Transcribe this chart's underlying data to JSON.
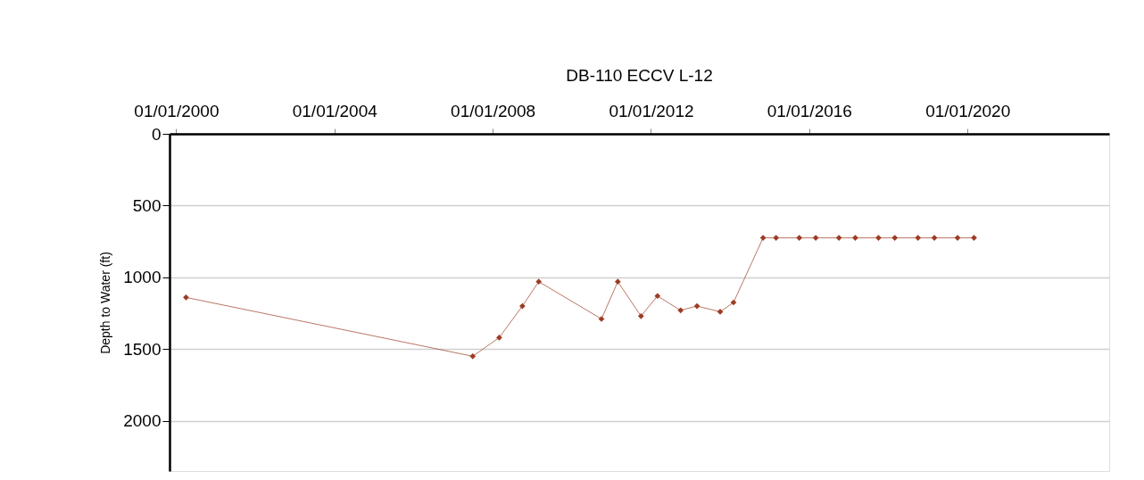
{
  "chart_data": {
    "type": "line",
    "title": "DB-110  ECCV L-12",
    "ylabel": "Depth to Water (ft)",
    "x": [
      "2000-04",
      "2007-07",
      "2008-03",
      "2008-10",
      "2009-03",
      "2010-10",
      "2011-03",
      "2011-10",
      "2012-03",
      "2012-10",
      "2013-03",
      "2013-10",
      "2014-02",
      "2014-11",
      "2015-03",
      "2015-10",
      "2016-03",
      "2016-10",
      "2017-03",
      "2017-10",
      "2018-03",
      "2018-10",
      "2019-03",
      "2019-10",
      "2020-03"
    ],
    "series": [
      {
        "color": "#9c3c24",
        "values": [
          1140,
          1550,
          1420,
          1200,
          1030,
          1290,
          1030,
          1270,
          1130,
          1230,
          1200,
          1240,
          1175,
          725,
          725,
          725,
          725,
          725,
          725,
          725,
          725,
          725,
          725,
          725,
          725
        ]
      }
    ],
    "xlim": [
      "1999-11",
      "2023-08"
    ],
    "xticks": [
      {
        "value": "2000-01-01",
        "label": "01/01/2000"
      },
      {
        "value": "2004-01-01",
        "label": "01/01/2004"
      },
      {
        "value": "2008-01-01",
        "label": "01/01/2008"
      },
      {
        "value": "2012-01-01",
        "label": "01/01/2012"
      },
      {
        "value": "2016-01-01",
        "label": "01/01/2016"
      },
      {
        "value": "2020-01-01",
        "label": "01/01/2020"
      }
    ],
    "ylim": [
      2350,
      0
    ],
    "yticks": [
      0,
      500,
      1000,
      1500,
      2000
    ],
    "grid": "y",
    "marker": "diamond",
    "line_style": "solid",
    "legend": false
  }
}
